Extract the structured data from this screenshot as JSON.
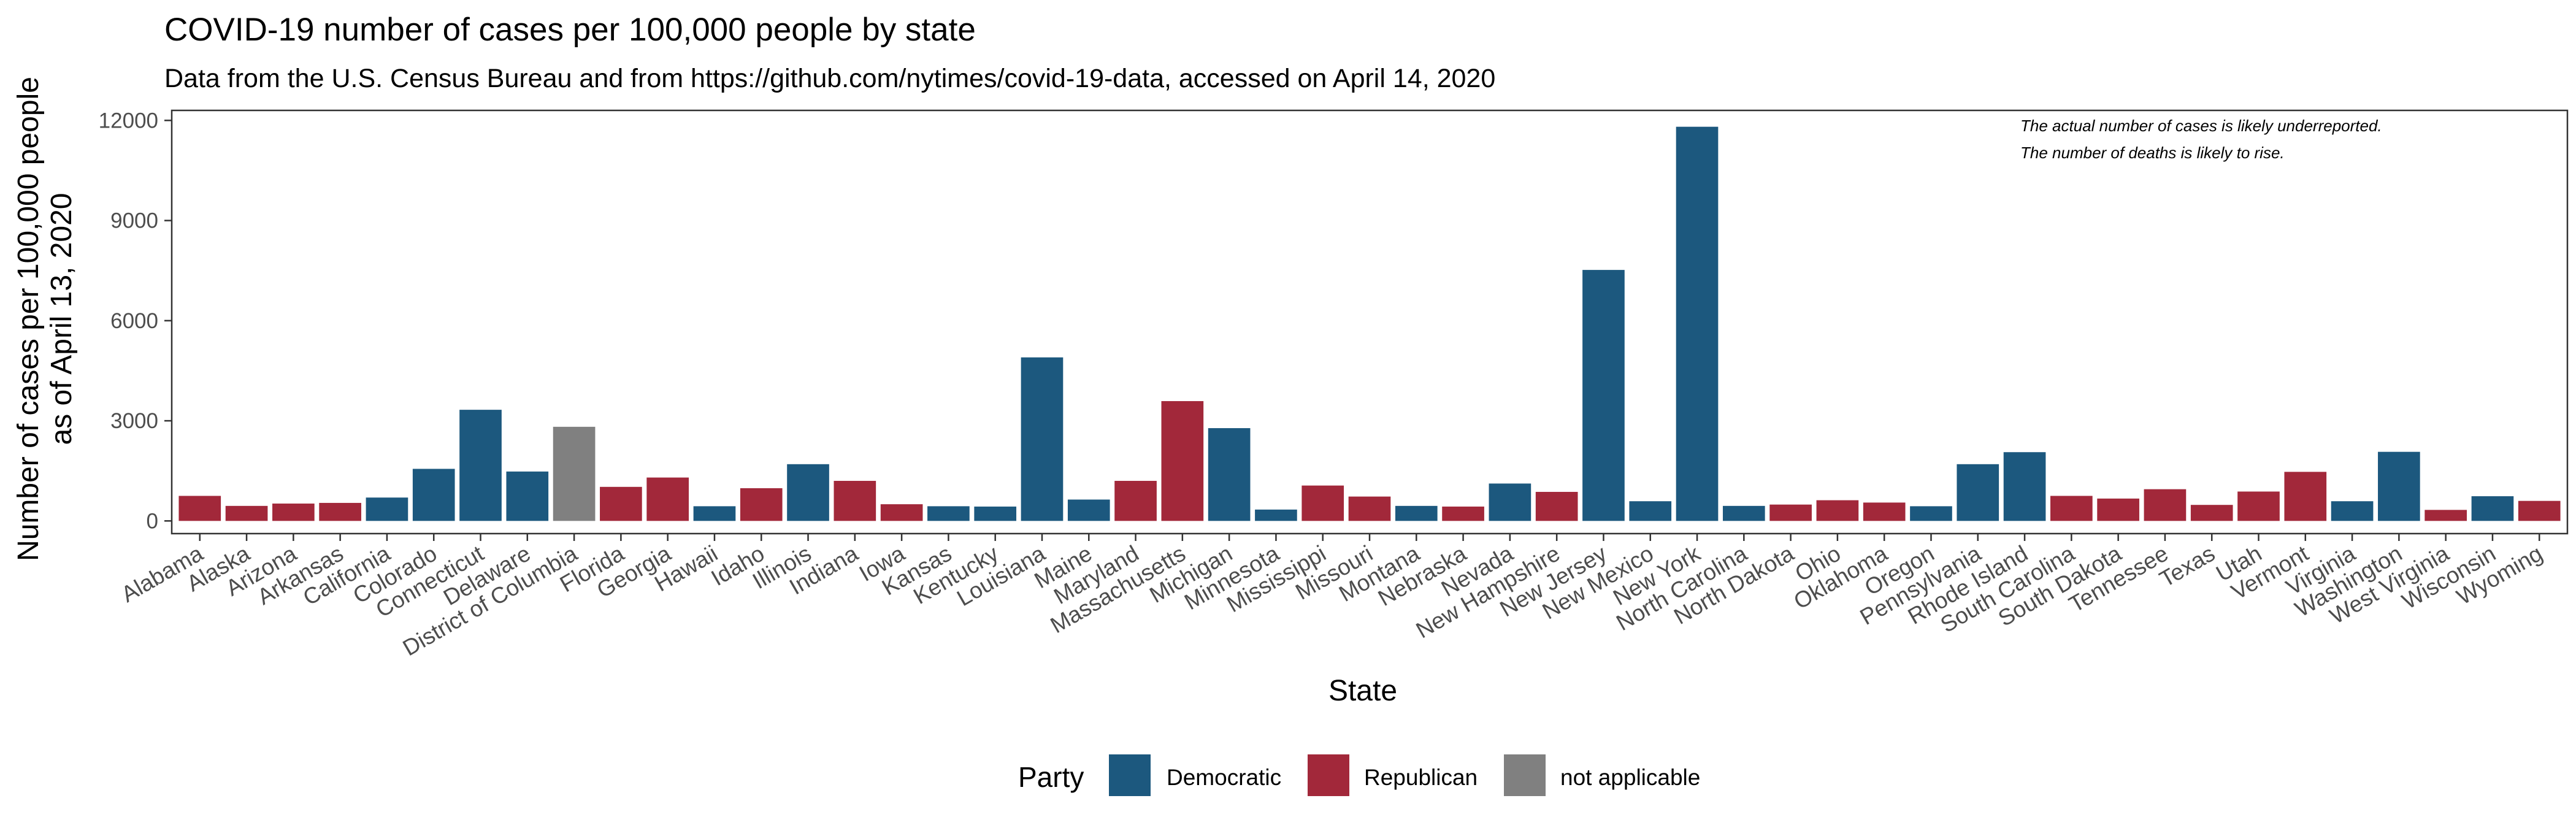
{
  "chart_data": {
    "type": "bar",
    "title": "COVID-19 number of cases per 100,000 people by state",
    "subtitle": "Data from the U.S. Census Bureau and from https://github.com/nytimes/covid-19-data, accessed on April 14, 2020",
    "xlabel": "State",
    "ylabel": [
      "Number of cases per 100,000 people",
      "as of April 13, 2020"
    ],
    "ylim": [
      -380,
      12300
    ],
    "yticks": [
      0,
      3000,
      6000,
      9000,
      12000
    ],
    "ytick_labels": [
      "0",
      "3000",
      "6000",
      "9000",
      "12000"
    ],
    "grid": false,
    "legend_position": "bottom",
    "annotations": [
      "The actual number of cases is likely underreported.",
      "The number of deaths is likely to rise."
    ],
    "colors": {
      "Democratic": "#1c587e",
      "Republican": "#a2283a",
      "not applicable": "#808080"
    },
    "legend": {
      "title": "Party",
      "entries": [
        "Democratic",
        "Republican",
        "not applicable"
      ]
    },
    "categories": [
      "Alabama",
      "Alaska",
      "Arizona",
      "Arkansas",
      "California",
      "Colorado",
      "Connecticut",
      "Delaware",
      "District of Columbia",
      "Florida",
      "Georgia",
      "Hawaii",
      "Idaho",
      "Illinois",
      "Indiana",
      "Iowa",
      "Kansas",
      "Kentucky",
      "Louisiana",
      "Maine",
      "Maryland",
      "Massachusetts",
      "Michigan",
      "Minnesota",
      "Mississippi",
      "Missouri",
      "Montana",
      "Nebraska",
      "Nevada",
      "New Hampshire",
      "New Jersey",
      "New Mexico",
      "New York",
      "North Carolina",
      "North Dakota",
      "Ohio",
      "Oklahoma",
      "Oregon",
      "Pennsylvania",
      "Rhode Island",
      "South Carolina",
      "South Dakota",
      "Tennessee",
      "Texas",
      "Utah",
      "Vermont",
      "Virginia",
      "Washington",
      "West Virginia",
      "Wisconsin",
      "Wyoming"
    ],
    "values": [
      750,
      450,
      520,
      540,
      700,
      1560,
      3330,
      1480,
      2820,
      1020,
      1300,
      440,
      980,
      1700,
      1200,
      500,
      440,
      430,
      4900,
      640,
      1200,
      3590,
      2780,
      340,
      1060,
      730,
      450,
      430,
      1120,
      870,
      7520,
      590,
      11810,
      450,
      490,
      620,
      550,
      440,
      1700,
      2060,
      750,
      670,
      950,
      480,
      880,
      1470,
      590,
      2070,
      330,
      740,
      600
    ],
    "parties": [
      "Republican",
      "Republican",
      "Republican",
      "Republican",
      "Democratic",
      "Democratic",
      "Democratic",
      "Democratic",
      "not applicable",
      "Republican",
      "Republican",
      "Democratic",
      "Republican",
      "Democratic",
      "Republican",
      "Republican",
      "Democratic",
      "Democratic",
      "Democratic",
      "Democratic",
      "Republican",
      "Republican",
      "Democratic",
      "Democratic",
      "Republican",
      "Republican",
      "Democratic",
      "Republican",
      "Democratic",
      "Republican",
      "Democratic",
      "Democratic",
      "Democratic",
      "Democratic",
      "Republican",
      "Republican",
      "Republican",
      "Democratic",
      "Democratic",
      "Democratic",
      "Republican",
      "Republican",
      "Republican",
      "Republican",
      "Republican",
      "Republican",
      "Democratic",
      "Democratic",
      "Republican",
      "Democratic",
      "Republican"
    ]
  }
}
